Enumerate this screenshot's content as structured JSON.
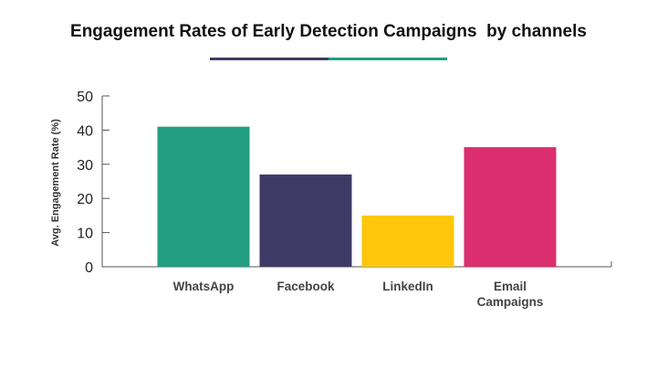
{
  "chart_data": {
    "type": "bar",
    "title": "Engagement Rates of Early Detection Campaigns  by channels",
    "ylabel": "Avg. Engagement Rate (%)",
    "xlabel": "",
    "categories": [
      "WhatsApp",
      "Facebook",
      "LinkedIn",
      "Email Campaigns"
    ],
    "category_lines": [
      [
        "WhatsApp"
      ],
      [
        "Facebook"
      ],
      [
        "LinkedIn"
      ],
      [
        "Email",
        "Campaigns"
      ]
    ],
    "values": [
      41,
      27,
      15,
      35
    ],
    "colors": [
      "#229e82",
      "#3d3b66",
      "#ffc60b",
      "#db2e6e"
    ],
    "ylim": [
      0,
      50
    ],
    "yticks": [
      0,
      10,
      20,
      30,
      40,
      50
    ],
    "grid": false,
    "accent_colors": [
      "#3d3b66",
      "#229e82"
    ]
  }
}
